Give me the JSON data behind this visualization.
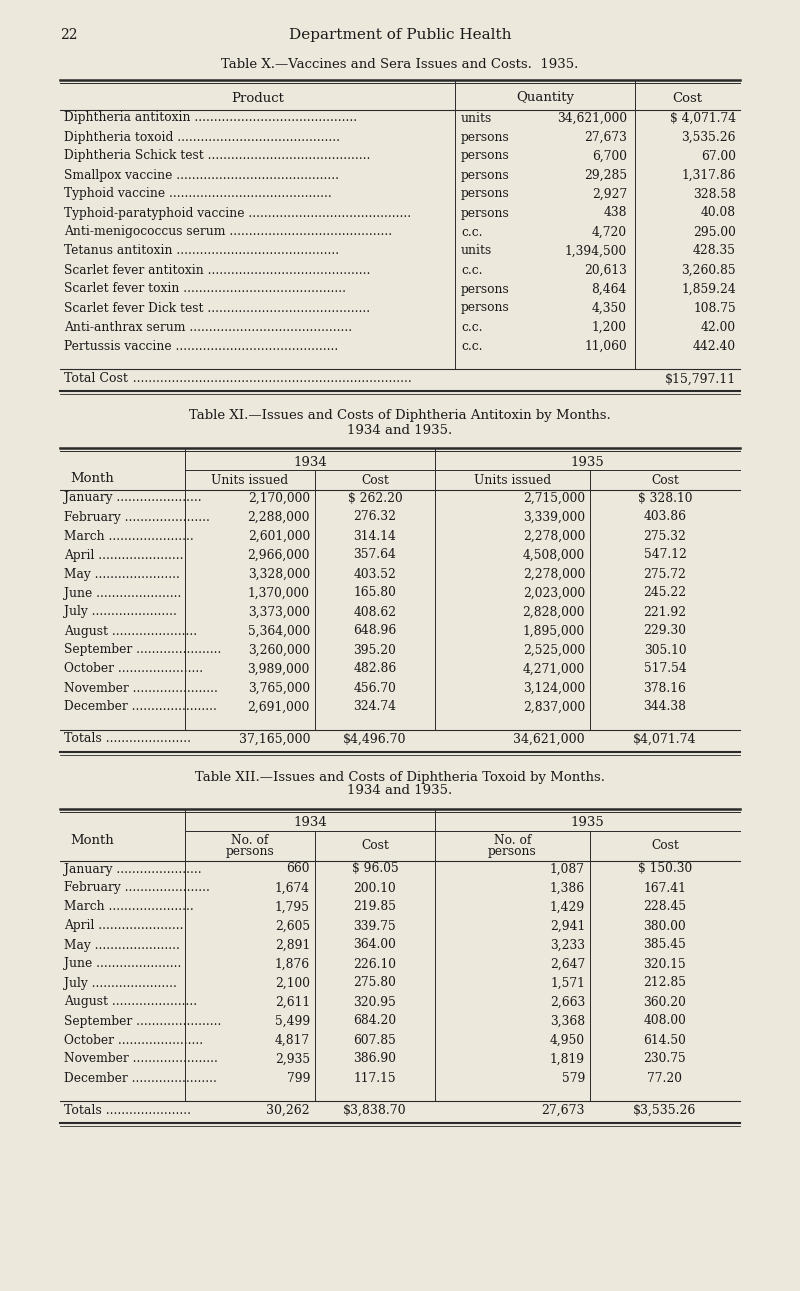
{
  "bg_color": "#ede8dc",
  "text_color": "#1a1a1a",
  "page_number": "22",
  "page_header": "Department of Public Health",
  "table1_title": "Table X.—Vaccines and Sera Issues and Costs.  1935.",
  "table1_rows": [
    [
      "Diphtheria antitoxin",
      "units",
      "34,621,000",
      "$ 4,071.74"
    ],
    [
      "Diphtheria toxoid",
      "persons",
      "27,673",
      "3,535.26"
    ],
    [
      "Diphtheria Schick test",
      "persons",
      "6,700",
      "67.00"
    ],
    [
      "Smallpox vaccine",
      "persons",
      "29,285",
      "1,317.86"
    ],
    [
      "Typhoid vaccine",
      "persons",
      "2,927",
      "328.58"
    ],
    [
      "Typhoid-paratyphoid vaccine",
      "persons",
      "438",
      "40.08"
    ],
    [
      "Anti-menigococcus serum",
      "c.c.",
      "4,720",
      "295.00"
    ],
    [
      "Tetanus antitoxin",
      "units",
      "1,394,500",
      "428.35"
    ],
    [
      "Scarlet fever antitoxin",
      "c.c.",
      "20,613",
      "3,260.85"
    ],
    [
      "Scarlet fever toxin",
      "persons",
      "8,464",
      "1,859.24"
    ],
    [
      "Scarlet fever Dick test",
      "persons",
      "4,350",
      "108.75"
    ],
    [
      "Anti-anthrax serum",
      "c.c.",
      "1,200",
      "42.00"
    ],
    [
      "Pertussis vaccine",
      "c.c.",
      "11,060",
      "442.40"
    ]
  ],
  "table1_total_cost": "$15,797.11",
  "table2_title_line1": "Table XI.—Issues and Costs of Diphtheria Antitoxin by Months.",
  "table2_title_line2": "1934 and 1935.",
  "table2_rows": [
    [
      "January",
      "2,170,000",
      "$ 262.20",
      "2,715,000",
      "$ 328.10"
    ],
    [
      "February",
      "2,288,000",
      "276.32",
      "3,339,000",
      "403.86"
    ],
    [
      "March",
      "2,601,000",
      "314.14",
      "2,278,000",
      "275.32"
    ],
    [
      "April",
      "2,966,000",
      "357.64",
      "4,508,000",
      "547.12"
    ],
    [
      "May",
      "3,328,000",
      "403.52",
      "2,278,000",
      "275.72"
    ],
    [
      "June",
      "1,370,000",
      "165.80",
      "2,023,000",
      "245.22"
    ],
    [
      "July",
      "3,373,000",
      "408.62",
      "2,828,000",
      "221.92"
    ],
    [
      "August",
      "5,364,000",
      "648.96",
      "1,895,000",
      "229.30"
    ],
    [
      "September",
      "3,260,000",
      "395.20",
      "2,525,000",
      "305.10"
    ],
    [
      "October",
      "3,989,000",
      "482.86",
      "4,271,000",
      "517.54"
    ],
    [
      "November",
      "3,765,000",
      "456.70",
      "3,124,000",
      "378.16"
    ],
    [
      "December",
      "2,691,000",
      "324.74",
      "2,837,000",
      "344.38"
    ]
  ],
  "table2_totals": [
    "37,165,000",
    "$4,496.70",
    "34,621,000",
    "$4,071.74"
  ],
  "table3_title_line1": "Table XII.—Issues and Costs of Diphtheria Toxoid by Months.",
  "table3_title_line2": "1934 and 1935.",
  "table3_rows": [
    [
      "January",
      "660",
      "$ 96.05",
      "1,087",
      "$ 150.30"
    ],
    [
      "February",
      "1,674",
      "200.10",
      "1,386",
      "167.41"
    ],
    [
      "March",
      "1,795",
      "219.85",
      "1,429",
      "228.45"
    ],
    [
      "April",
      "2,605",
      "339.75",
      "2,941",
      "380.00"
    ],
    [
      "May",
      "2,891",
      "364.00",
      "3,233",
      "385.45"
    ],
    [
      "June",
      "1,876",
      "226.10",
      "2,647",
      "320.15"
    ],
    [
      "July",
      "2,100",
      "275.80",
      "1,571",
      "212.85"
    ],
    [
      "August",
      "2,611",
      "320.95",
      "2,663",
      "360.20"
    ],
    [
      "September",
      "5,499",
      "684.20",
      "3,368",
      "408.00"
    ],
    [
      "October",
      "4,817",
      "607.85",
      "4,950",
      "614.50"
    ],
    [
      "November",
      "2,935",
      "386.90",
      "1,819",
      "230.75"
    ],
    [
      "December",
      "799",
      "117.15",
      "579",
      "77.20"
    ]
  ],
  "table3_totals": [
    "30,262",
    "$3,838.70",
    "27,673",
    "$3,535.26"
  ]
}
